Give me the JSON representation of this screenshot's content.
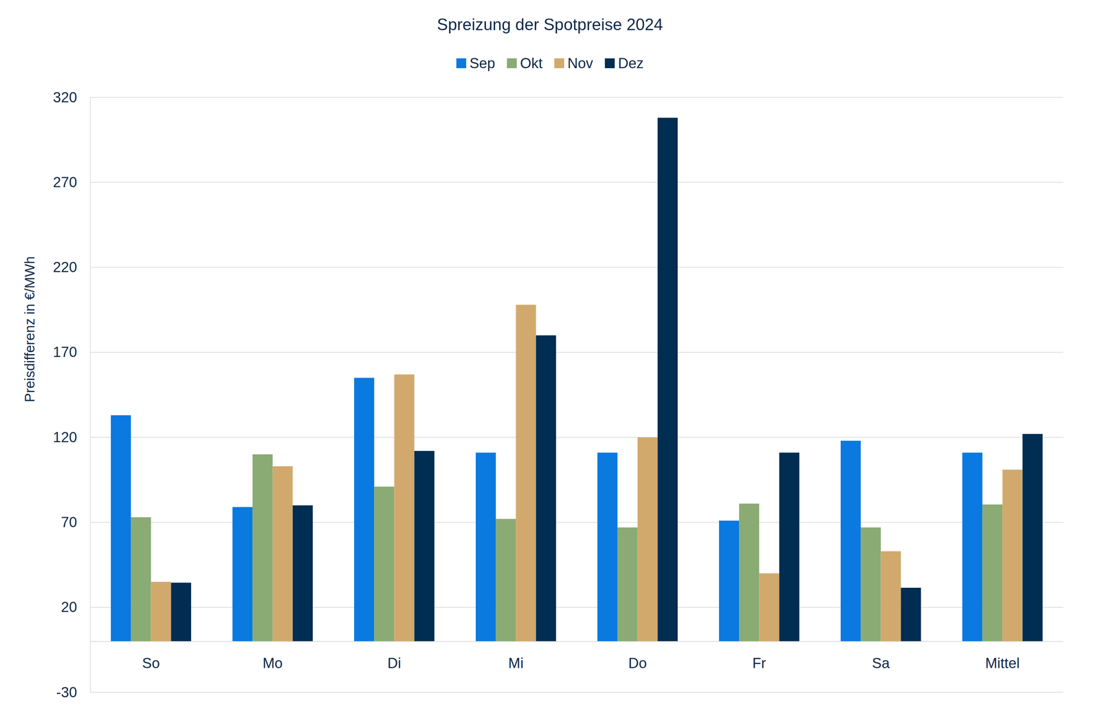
{
  "chart_data": {
    "type": "bar",
    "title": "Spreizung der Spotpreise 2024",
    "y_label": "Preisdifferenz in €/MWh",
    "categories": [
      "So",
      "Mo",
      "Di",
      "Mi",
      "Do",
      "Fr",
      "Sa",
      "Mittel"
    ],
    "series": [
      {
        "name": "Sep",
        "color": "#0a79e0",
        "values": [
          133,
          79,
          155,
          111,
          111,
          71,
          118,
          111
        ]
      },
      {
        "name": "Okt",
        "color": "#8aab74",
        "values": [
          73,
          110,
          91,
          72,
          67,
          81,
          67,
          80.5
        ]
      },
      {
        "name": "Nov",
        "color": "#d2a96d",
        "values": [
          35,
          103,
          157,
          198,
          120,
          40,
          53,
          101
        ]
      },
      {
        "name": "Dez",
        "color": "#002d52",
        "values": [
          34.5,
          80,
          112,
          180,
          308,
          111,
          31.5,
          122
        ]
      }
    ],
    "ylim": [
      -30,
      320
    ],
    "yticks": [
      -30,
      20,
      70,
      120,
      170,
      220,
      270,
      320
    ],
    "grid": true,
    "legend": "top"
  }
}
